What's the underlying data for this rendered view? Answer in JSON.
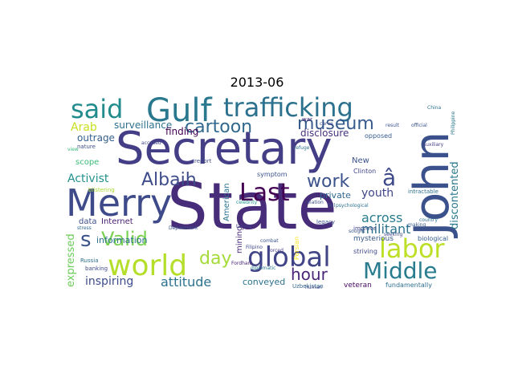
{
  "title": "2013-06",
  "words": [
    {
      "text": "State",
      "color": "#472c7a"
    },
    {
      "text": "Secretary",
      "color": "#433e85"
    },
    {
      "text": "John",
      "color": "#3b518b"
    },
    {
      "text": "Merry",
      "color": "#3e4a89"
    },
    {
      "text": "Gulf",
      "color": "#2a788e"
    },
    {
      "text": "trafficking",
      "color": "#2c728e"
    },
    {
      "text": "said",
      "color": "#228c8d"
    },
    {
      "text": "world",
      "color": "#b5de2b"
    },
    {
      "text": "global",
      "color": "#414487"
    },
    {
      "text": "Last",
      "color": "#440154"
    },
    {
      "text": "labor",
      "color": "#bddf26"
    },
    {
      "text": "Middle",
      "color": "#287c8e"
    },
    {
      "text": "cartoon",
      "color": "#31688e"
    },
    {
      "text": "museum",
      "color": "#375a8c"
    },
    {
      "text": "Albaih",
      "color": "#3e4c8a"
    },
    {
      "text": "work",
      "color": "#3b528b"
    },
    {
      "text": "Valid",
      "color": "#7ad151"
    },
    {
      "text": "s",
      "color": "#3b528b"
    },
    {
      "text": "day",
      "color": "#a5db36"
    },
    {
      "text": "hour",
      "color": "#482576"
    },
    {
      "text": "â",
      "color": "#3e4989"
    },
    {
      "text": "youth",
      "color": "#3f4788"
    },
    {
      "text": "across",
      "color": "#287d8e"
    },
    {
      "text": "militant",
      "color": "#2c738e"
    },
    {
      "text": "discontented",
      "color": "#2a788e"
    },
    {
      "text": "attitude",
      "color": "#2c728e"
    },
    {
      "text": "inspiring",
      "color": "#3d4d8a"
    },
    {
      "text": "expressed",
      "color": "#6ccd5a"
    },
    {
      "text": "Activist",
      "color": "#21918c"
    },
    {
      "text": "Arab",
      "color": "#c8e020"
    },
    {
      "text": "surveillance",
      "color": "#2d708e"
    },
    {
      "text": "finding",
      "color": "#440154"
    },
    {
      "text": "disclosure",
      "color": "#46327e"
    },
    {
      "text": "outrage",
      "color": "#355f8d"
    },
    {
      "text": "scope",
      "color": "#3aba76"
    },
    {
      "text": "information",
      "color": "#2d718e"
    },
    {
      "text": "Internet",
      "color": "#482071"
    },
    {
      "text": "data",
      "color": "#3d4e8a"
    },
    {
      "text": "American",
      "color": "#2b758e"
    },
    {
      "text": "mining",
      "color": "#482878"
    },
    {
      "text": "private",
      "color": "#31688e"
    },
    {
      "text": "conveyed",
      "color": "#2c738e"
    },
    {
      "text": "New",
      "color": "#3b528b"
    },
    {
      "text": "mysterious",
      "color": "#38588c"
    },
    {
      "text": "veteran",
      "color": "#46085c"
    },
    {
      "text": "fundamentally",
      "color": "#2e6e8e"
    },
    {
      "text": "striving",
      "color": "#3f4788"
    },
    {
      "text": "Persian",
      "color": "#fde725"
    },
    {
      "text": "biological",
      "color": "#365c8d"
    },
    {
      "text": "intractable",
      "color": "#2c738e"
    },
    {
      "text": "symptom",
      "color": "#3b528b"
    },
    {
      "text": "opposed",
      "color": "#375b8d"
    },
    {
      "text": "Clinton",
      "color": "#404688"
    },
    {
      "text": "Uzbekistan",
      "color": "#31688e"
    },
    {
      "text": "legacy",
      "color": "#3c4f8a"
    },
    {
      "text": "improve",
      "color": "#3f4889"
    },
    {
      "text": "blistering",
      "color": "#a8db34"
    },
    {
      "text": "Department",
      "color": "#3b528b"
    },
    {
      "text": "Russia",
      "color": "#2d708e"
    },
    {
      "text": "banking",
      "color": "#3e4a89"
    },
    {
      "text": "diplomatic",
      "color": "#2a788e"
    },
    {
      "text": "human",
      "color": "#3f4889"
    },
    {
      "text": "Fordham",
      "color": "#482677"
    },
    {
      "text": "Filipino",
      "color": "#3e4989"
    },
    {
      "text": "forced",
      "color": "#433e85"
    },
    {
      "text": "celebrity",
      "color": "#21908d"
    },
    {
      "text": "refuge",
      "color": "#2d708e"
    },
    {
      "text": "accused",
      "color": "#404588"
    },
    {
      "text": "nature",
      "color": "#3e4c8a"
    },
    {
      "text": "view",
      "color": "#35b779"
    },
    {
      "text": "stress",
      "color": "#31688e"
    },
    {
      "text": "report",
      "color": "#3e4989"
    },
    {
      "text": "result",
      "color": "#3b528b"
    },
    {
      "text": "official",
      "color": "#3a538b"
    },
    {
      "text": "Auxiliary",
      "color": "#433d84"
    },
    {
      "text": "China",
      "color": "#2d708e"
    },
    {
      "text": "Philippine",
      "color": "#2a788e"
    },
    {
      "text": "war",
      "color": "#472d7b"
    },
    {
      "text": "carve",
      "color": "#3e4989"
    },
    {
      "text": "combat",
      "color": "#3b528b"
    },
    {
      "text": "making",
      "color": "#375a8c"
    },
    {
      "text": "seeking",
      "color": "#3f4889"
    },
    {
      "text": "country",
      "color": "#2c728e"
    },
    {
      "text": "sought",
      "color": "#3a548c"
    },
    {
      "text": "taking",
      "color": "#404588"
    },
    {
      "text": "relation",
      "color": "#3e4989"
    },
    {
      "text": "fall",
      "color": "#3b528b"
    },
    {
      "text": "psychological",
      "color": "#2d708e"
    }
  ]
}
